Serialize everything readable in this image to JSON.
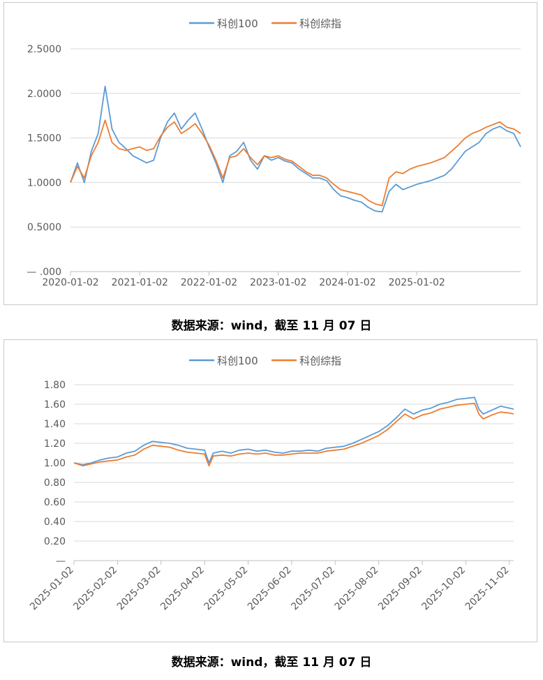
{
  "chart_data": [
    {
      "type": "line",
      "legend": [
        "科创100",
        "科创综指"
      ],
      "legend_position": "top-center",
      "y_ticks": [
        "2.5000",
        "2.0000",
        "1.5000",
        "1.0000",
        "0.5000",
        "—   .000"
      ],
      "y_tick_values": [
        2.5,
        2.0,
        1.5,
        1.0,
        0.5,
        0
      ],
      "ylim": [
        0,
        2.5
      ],
      "x_ticks": [
        "2020-01-02",
        "2021-01-02",
        "2022-01-02",
        "2023-01-02",
        "2024-01-02",
        "2025-01-02"
      ],
      "x_tick_pos": [
        0.0,
        0.2,
        0.4,
        0.6,
        0.8,
        1.0
      ],
      "xlim": [
        0,
        1.3
      ],
      "gridlines": true,
      "series": [
        {
          "name": "科创100",
          "color": "#5b9bd5",
          "x": [
            0,
            0.02,
            0.04,
            0.06,
            0.08,
            0.1,
            0.12,
            0.14,
            0.16,
            0.18,
            0.2,
            0.22,
            0.24,
            0.26,
            0.28,
            0.3,
            0.32,
            0.34,
            0.36,
            0.38,
            0.4,
            0.42,
            0.44,
            0.46,
            0.48,
            0.5,
            0.52,
            0.54,
            0.56,
            0.58,
            0.6,
            0.62,
            0.64,
            0.66,
            0.68,
            0.7,
            0.72,
            0.74,
            0.76,
            0.78,
            0.8,
            0.82,
            0.84,
            0.86,
            0.88,
            0.9,
            0.92,
            0.94,
            0.96,
            0.98,
            1.0,
            1.02,
            1.04,
            1.06,
            1.08,
            1.1,
            1.12,
            1.14,
            1.16,
            1.18,
            1.2,
            1.22,
            1.24,
            1.26,
            1.28,
            1.3
          ],
          "values": [
            1.0,
            1.22,
            1.0,
            1.35,
            1.55,
            2.08,
            1.6,
            1.45,
            1.38,
            1.3,
            1.26,
            1.22,
            1.25,
            1.5,
            1.68,
            1.78,
            1.6,
            1.7,
            1.78,
            1.6,
            1.4,
            1.22,
            1.0,
            1.3,
            1.35,
            1.45,
            1.25,
            1.15,
            1.3,
            1.25,
            1.28,
            1.24,
            1.22,
            1.15,
            1.1,
            1.05,
            1.05,
            1.02,
            0.92,
            0.85,
            0.83,
            0.8,
            0.78,
            0.72,
            0.68,
            0.67,
            0.9,
            0.98,
            0.92,
            0.95,
            0.98,
            1.0,
            1.02,
            1.05,
            1.08,
            1.15,
            1.25,
            1.35,
            1.4,
            1.45,
            1.55,
            1.6,
            1.63,
            1.58,
            1.55,
            1.4
          ]
        },
        {
          "name": "科创综指",
          "color": "#ed7d31",
          "x": [
            0,
            0.02,
            0.04,
            0.06,
            0.08,
            0.1,
            0.12,
            0.14,
            0.16,
            0.18,
            0.2,
            0.22,
            0.24,
            0.26,
            0.28,
            0.3,
            0.32,
            0.34,
            0.36,
            0.38,
            0.4,
            0.42,
            0.44,
            0.46,
            0.48,
            0.5,
            0.52,
            0.54,
            0.56,
            0.58,
            0.6,
            0.62,
            0.64,
            0.66,
            0.68,
            0.7,
            0.72,
            0.74,
            0.76,
            0.78,
            0.8,
            0.82,
            0.84,
            0.86,
            0.88,
            0.9,
            0.92,
            0.94,
            0.96,
            0.98,
            1.0,
            1.02,
            1.04,
            1.06,
            1.08,
            1.1,
            1.12,
            1.14,
            1.16,
            1.18,
            1.2,
            1.22,
            1.24,
            1.26,
            1.28,
            1.3
          ],
          "values": [
            1.0,
            1.18,
            1.05,
            1.3,
            1.45,
            1.7,
            1.45,
            1.38,
            1.36,
            1.38,
            1.4,
            1.36,
            1.38,
            1.52,
            1.62,
            1.68,
            1.55,
            1.6,
            1.66,
            1.55,
            1.42,
            1.25,
            1.05,
            1.28,
            1.3,
            1.38,
            1.28,
            1.2,
            1.3,
            1.28,
            1.3,
            1.26,
            1.24,
            1.18,
            1.12,
            1.08,
            1.08,
            1.05,
            0.98,
            0.92,
            0.9,
            0.88,
            0.86,
            0.8,
            0.76,
            0.74,
            1.05,
            1.12,
            1.1,
            1.15,
            1.18,
            1.2,
            1.22,
            1.25,
            1.28,
            1.35,
            1.42,
            1.5,
            1.55,
            1.58,
            1.62,
            1.65,
            1.68,
            1.62,
            1.6,
            1.55
          ]
        }
      ]
    },
    {
      "type": "line",
      "legend": [
        "科创100",
        "科创综指"
      ],
      "legend_position": "top-center",
      "y_ticks": [
        "1.80",
        "1.60",
        "1.40",
        "1.20",
        "1.00",
        "0.80",
        "0.60",
        "0.40",
        "0.20",
        "—"
      ],
      "y_tick_values": [
        1.8,
        1.6,
        1.4,
        1.2,
        1.0,
        0.8,
        0.6,
        0.4,
        0.2,
        0
      ],
      "ylim": [
        0,
        1.8
      ],
      "x_ticks": [
        "2025-01-02",
        "2025-02-02",
        "2025-03-02",
        "2025-04-02",
        "2025-05-02",
        "2025-06-02",
        "2025-07-02",
        "2025-08-02",
        "2025-09-02",
        "2025-10-02",
        "2025-11-02"
      ],
      "xlim": [
        0,
        10.1
      ],
      "gridlines": true,
      "series": [
        {
          "name": "科创100",
          "color": "#5b9bd5",
          "x": [
            0,
            0.2,
            0.4,
            0.6,
            0.8,
            1.0,
            1.2,
            1.4,
            1.6,
            1.8,
            2.0,
            2.2,
            2.4,
            2.6,
            2.8,
            3.0,
            3.1,
            3.2,
            3.4,
            3.6,
            3.8,
            4.0,
            4.2,
            4.4,
            4.6,
            4.8,
            5.0,
            5.2,
            5.4,
            5.6,
            5.8,
            6.0,
            6.2,
            6.4,
            6.6,
            6.8,
            7.0,
            7.2,
            7.4,
            7.6,
            7.8,
            8.0,
            8.2,
            8.4,
            8.6,
            8.8,
            9.0,
            9.2,
            9.3,
            9.4,
            9.6,
            9.8,
            10.0,
            10.1
          ],
          "values": [
            1.0,
            0.98,
            1.0,
            1.03,
            1.05,
            1.06,
            1.1,
            1.12,
            1.18,
            1.22,
            1.21,
            1.2,
            1.18,
            1.15,
            1.14,
            1.13,
            1.0,
            1.1,
            1.12,
            1.1,
            1.13,
            1.14,
            1.12,
            1.13,
            1.11,
            1.1,
            1.12,
            1.12,
            1.13,
            1.12,
            1.15,
            1.16,
            1.17,
            1.2,
            1.24,
            1.28,
            1.32,
            1.38,
            1.46,
            1.55,
            1.5,
            1.54,
            1.56,
            1.6,
            1.62,
            1.65,
            1.66,
            1.67,
            1.55,
            1.5,
            1.54,
            1.58,
            1.56,
            1.55
          ]
        },
        {
          "name": "科创综指",
          "color": "#ed7d31",
          "x": [
            0,
            0.2,
            0.4,
            0.6,
            0.8,
            1.0,
            1.2,
            1.4,
            1.6,
            1.8,
            2.0,
            2.2,
            2.4,
            2.6,
            2.8,
            3.0,
            3.1,
            3.2,
            3.4,
            3.6,
            3.8,
            4.0,
            4.2,
            4.4,
            4.6,
            4.8,
            5.0,
            5.2,
            5.4,
            5.6,
            5.8,
            6.0,
            6.2,
            6.4,
            6.6,
            6.8,
            7.0,
            7.2,
            7.4,
            7.6,
            7.8,
            8.0,
            8.2,
            8.4,
            8.6,
            8.8,
            9.0,
            9.2,
            9.3,
            9.4,
            9.6,
            9.8,
            10.0,
            10.1
          ],
          "values": [
            1.0,
            0.97,
            0.99,
            1.01,
            1.02,
            1.03,
            1.06,
            1.08,
            1.14,
            1.18,
            1.17,
            1.16,
            1.13,
            1.11,
            1.1,
            1.09,
            0.97,
            1.07,
            1.08,
            1.07,
            1.09,
            1.1,
            1.09,
            1.1,
            1.08,
            1.08,
            1.09,
            1.1,
            1.1,
            1.1,
            1.12,
            1.13,
            1.14,
            1.17,
            1.2,
            1.24,
            1.28,
            1.34,
            1.42,
            1.5,
            1.45,
            1.49,
            1.51,
            1.55,
            1.57,
            1.59,
            1.6,
            1.61,
            1.5,
            1.45,
            1.49,
            1.52,
            1.51,
            1.5
          ]
        }
      ]
    }
  ],
  "captions": [
    "数据来源：wind，截至 11 月 07 日",
    "数据来源：wind，截至 11 月 07 日"
  ]
}
